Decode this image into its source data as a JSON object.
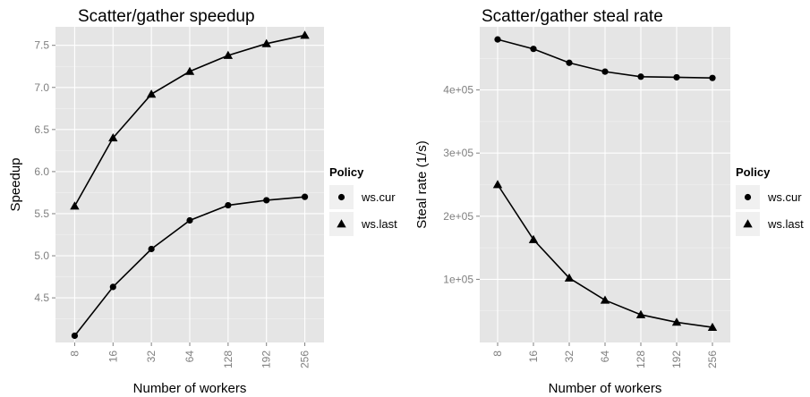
{
  "chart_data": [
    {
      "type": "line",
      "title": "Scatter/gather speedup",
      "xlabel": "Number of workers",
      "ylabel": "Speedup",
      "categories": [
        "8",
        "16",
        "32",
        "64",
        "128",
        "192",
        "256"
      ],
      "ylim": [
        3.97,
        7.72
      ],
      "yticks": [
        4.5,
        5.0,
        5.5,
        6.0,
        6.5,
        7.0,
        7.5
      ],
      "ytick_labels": [
        "4.5",
        "5.0",
        "5.5",
        "6.0",
        "6.5",
        "7.0",
        "7.5"
      ],
      "grid": true,
      "legend": {
        "title": "Policy",
        "placement": "right"
      },
      "series": [
        {
          "name": "ws.cur",
          "marker": "circle",
          "values": [
            4.05,
            4.63,
            5.08,
            5.42,
            5.6,
            5.66,
            5.7
          ]
        },
        {
          "name": "ws.last",
          "marker": "triangle",
          "values": [
            5.59,
            6.4,
            6.92,
            7.19,
            7.38,
            7.52,
            7.62
          ]
        }
      ]
    },
    {
      "type": "line",
      "title": "Scatter/gather steal rate",
      "xlabel": "Number of workers",
      "ylabel": "Steal rate (1/s)",
      "categories": [
        "8",
        "16",
        "32",
        "64",
        "128",
        "192",
        "256"
      ],
      "ylim": [
        0,
        500000
      ],
      "yticks": [
        100000,
        200000,
        300000,
        400000
      ],
      "ytick_labels": [
        "1e+05",
        "2e+05",
        "3e+05",
        "4e+05"
      ],
      "grid": true,
      "legend": {
        "title": "Policy",
        "placement": "right"
      },
      "series": [
        {
          "name": "ws.cur",
          "marker": "circle",
          "values": [
            480000,
            465000,
            443000,
            429000,
            421000,
            420000,
            419000
          ]
        },
        {
          "name": "ws.last",
          "marker": "triangle",
          "values": [
            250000,
            163000,
            102000,
            67000,
            44000,
            32000,
            24000
          ]
        }
      ]
    }
  ]
}
